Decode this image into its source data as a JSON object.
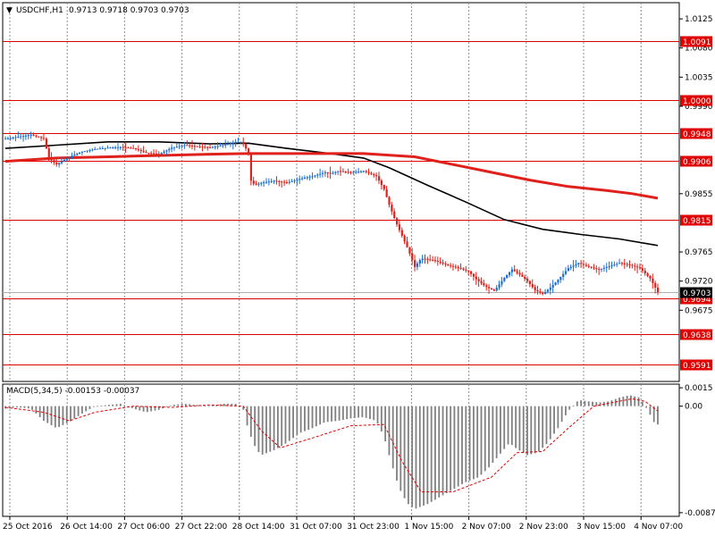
{
  "header": {
    "symbol": "USDCHF,H1",
    "ohlc": "0.9713 0.9718 0.9703 0.9703",
    "menu_glyph": "▼"
  },
  "macd_header": {
    "label": "MACD(5,34,5) -0.00153 -0.00037"
  },
  "colors": {
    "grid": "#8c8c8c",
    "bull": "#1e6fd0",
    "bear": "#e0201a",
    "ma_fast": "#000000",
    "ma_slow": "#e0201a",
    "level": "#e00000",
    "hist": "#808080",
    "signal": "#e00000"
  },
  "chart_data": [
    {
      "type": "candlestick",
      "title": "USDCHF,H1",
      "ylim": [
        0.9565,
        1.015
      ],
      "x_tick_labels": [
        "25 Oct 2016",
        "26 Oct 14:00",
        "27 Oct 06:00",
        "27 Oct 22:00",
        "28 Oct 14:00",
        "31 Oct 07:00",
        "31 Oct 23:00",
        "1 Nov 15:00",
        "2 Nov 07:00",
        "2 Nov 23:00",
        "3 Nov 15:00",
        "4 Nov 07:00"
      ],
      "y_ticks": [
        {
          "value": 1.0125,
          "label": "1.0125"
        },
        {
          "value": 1.008,
          "label": "1.0080"
        },
        {
          "value": 1.0035,
          "label": "1.0035"
        },
        {
          "value": 0.999,
          "label": "0.9990"
        },
        {
          "value": 0.9855,
          "label": "0.9855"
        },
        {
          "value": 0.9765,
          "label": "0.9765"
        },
        {
          "value": 0.972,
          "label": "0.9720"
        },
        {
          "value": 0.9675,
          "label": "0.9675"
        }
      ],
      "levels": [
        {
          "value": 1.0091,
          "label": "1.0091"
        },
        {
          "value": 1.0,
          "label": "1.0000"
        },
        {
          "value": 0.9948,
          "label": "0.9948"
        },
        {
          "value": 0.9906,
          "label": "0.9906"
        },
        {
          "value": 0.9815,
          "label": "0.9815"
        },
        {
          "value": 0.9694,
          "label": "0.9694"
        },
        {
          "value": 0.9638,
          "label": "0.9638"
        },
        {
          "value": 0.9591,
          "label": "0.9591"
        }
      ],
      "current_price": {
        "value": 0.9703,
        "label": "0.9703"
      },
      "close_path": [
        [
          0,
          0.994
        ],
        [
          10,
          0.9943
        ],
        [
          20,
          0.9946
        ],
        [
          30,
          0.994
        ],
        [
          34,
          0.991
        ],
        [
          40,
          0.99
        ],
        [
          50,
          0.9912
        ],
        [
          60,
          0.992
        ],
        [
          70,
          0.9924
        ],
        [
          80,
          0.9926
        ],
        [
          90,
          0.9927
        ],
        [
          100,
          0.9925
        ],
        [
          110,
          0.9918
        ],
        [
          120,
          0.9916
        ],
        [
          130,
          0.9926
        ],
        [
          140,
          0.993
        ],
        [
          150,
          0.9928
        ],
        [
          160,
          0.9926
        ],
        [
          170,
          0.993
        ],
        [
          180,
          0.9935
        ],
        [
          185,
          0.9935
        ],
        [
          190,
          0.9918
        ],
        [
          192,
          0.9875
        ],
        [
          195,
          0.9868
        ],
        [
          200,
          0.9872
        ],
        [
          210,
          0.9875
        ],
        [
          220,
          0.9872
        ],
        [
          230,
          0.9878
        ],
        [
          240,
          0.9882
        ],
        [
          250,
          0.9888
        ],
        [
          255,
          0.9886
        ],
        [
          260,
          0.989
        ],
        [
          270,
          0.9888
        ],
        [
          280,
          0.989
        ],
        [
          290,
          0.9882
        ],
        [
          296,
          0.9862
        ],
        [
          300,
          0.9838
        ],
        [
          305,
          0.9812
        ],
        [
          310,
          0.979
        ],
        [
          315,
          0.9768
        ],
        [
          320,
          0.9742
        ],
        [
          325,
          0.9755
        ],
        [
          335,
          0.9752
        ],
        [
          345,
          0.9745
        ],
        [
          355,
          0.974
        ],
        [
          362,
          0.9735
        ],
        [
          368,
          0.9723
        ],
        [
          375,
          0.9712
        ],
        [
          382,
          0.9705
        ],
        [
          390,
          0.9725
        ],
        [
          396,
          0.9738
        ],
        [
          402,
          0.973
        ],
        [
          408,
          0.972
        ],
        [
          414,
          0.9706
        ],
        [
          420,
          0.97
        ],
        [
          426,
          0.971
        ],
        [
          432,
          0.9722
        ],
        [
          440,
          0.974
        ],
        [
          448,
          0.9748
        ],
        [
          456,
          0.9742
        ],
        [
          464,
          0.9738
        ],
        [
          472,
          0.9743
        ],
        [
          480,
          0.9748
        ],
        [
          488,
          0.9745
        ],
        [
          496,
          0.974
        ],
        [
          504,
          0.9724
        ],
        [
          510,
          0.9703
        ]
      ],
      "series": [
        {
          "name": "",
          "kind": "moving-average",
          "color": "#000000",
          "points": [
            [
              0,
              0.9925
            ],
            [
              40,
              0.993
            ],
            [
              80,
              0.9935
            ],
            [
              120,
              0.9935
            ],
            [
              160,
              0.9932
            ],
            [
              190,
              0.9933
            ],
            [
              220,
              0.9925
            ],
            [
              250,
              0.9918
            ],
            [
              280,
              0.991
            ],
            [
              300,
              0.9895
            ],
            [
              330,
              0.9868
            ],
            [
              360,
              0.9842
            ],
            [
              390,
              0.9815
            ],
            [
              420,
              0.98
            ],
            [
              450,
              0.9792
            ],
            [
              480,
              0.9785
            ],
            [
              510,
              0.9775
            ]
          ]
        },
        {
          "name": "",
          "kind": "moving-average",
          "color": "#e0201a",
          "points": [
            [
              0,
              0.9905
            ],
            [
              40,
              0.991
            ],
            [
              100,
              0.9913
            ],
            [
              160,
              0.9916
            ],
            [
              190,
              0.9917
            ],
            [
              230,
              0.9917
            ],
            [
              280,
              0.9917
            ],
            [
              320,
              0.9912
            ],
            [
              350,
              0.99
            ],
            [
              380,
              0.9888
            ],
            [
              410,
              0.9876
            ],
            [
              440,
              0.9866
            ],
            [
              470,
              0.986
            ],
            [
              490,
              0.9855
            ],
            [
              510,
              0.9848
            ]
          ]
        }
      ]
    },
    {
      "type": "bar",
      "title": "MACD(5,34,5)",
      "values_text": "-0.00153 -0.00037",
      "ylim": [
        -0.009,
        0.0018
      ],
      "y_ticks": [
        {
          "value": 0.0015,
          "label": "0.0015"
        },
        {
          "value": 0.0,
          "label": "0.00"
        },
        {
          "value": -0.0087,
          "label": "-0.0087"
        }
      ],
      "histogram_path": [
        [
          0,
          -0.0002
        ],
        [
          10,
          -0.0001
        ],
        [
          20,
          -0.0002
        ],
        [
          30,
          -0.0012
        ],
        [
          40,
          -0.0018
        ],
        [
          50,
          -0.0013
        ],
        [
          60,
          -0.0006
        ],
        [
          70,
          0.0
        ],
        [
          80,
          0.0001
        ],
        [
          90,
          0.0002
        ],
        [
          100,
          -0.0002
        ],
        [
          110,
          -0.0005
        ],
        [
          120,
          -0.0003
        ],
        [
          130,
          0.0001
        ],
        [
          140,
          0.0002
        ],
        [
          150,
          0.0001
        ],
        [
          160,
          0.0
        ],
        [
          170,
          0.0002
        ],
        [
          180,
          0.0002
        ],
        [
          186,
          -0.0003
        ],
        [
          190,
          -0.002
        ],
        [
          196,
          -0.0035
        ],
        [
          200,
          -0.004
        ],
        [
          210,
          -0.0036
        ],
        [
          220,
          -0.003
        ],
        [
          230,
          -0.0022
        ],
        [
          240,
          -0.0018
        ],
        [
          250,
          -0.0013
        ],
        [
          260,
          -0.0012
        ],
        [
          270,
          -0.001
        ],
        [
          280,
          -0.0009
        ],
        [
          290,
          -0.0012
        ],
        [
          296,
          -0.0025
        ],
        [
          300,
          -0.004
        ],
        [
          305,
          -0.0058
        ],
        [
          310,
          -0.0072
        ],
        [
          315,
          -0.008
        ],
        [
          320,
          -0.0084
        ],
        [
          330,
          -0.008
        ],
        [
          340,
          -0.0074
        ],
        [
          350,
          -0.0068
        ],
        [
          360,
          -0.0062
        ],
        [
          370,
          -0.0058
        ],
        [
          378,
          -0.005
        ],
        [
          386,
          -0.004
        ],
        [
          394,
          -0.003
        ],
        [
          400,
          -0.0035
        ],
        [
          408,
          -0.004
        ],
        [
          416,
          -0.0038
        ],
        [
          424,
          -0.003
        ],
        [
          432,
          -0.0018
        ],
        [
          440,
          -0.0004
        ],
        [
          448,
          0.0005
        ],
        [
          456,
          0.0004
        ],
        [
          464,
          0.0003
        ],
        [
          472,
          0.0004
        ],
        [
          480,
          0.0007
        ],
        [
          488,
          0.0009
        ],
        [
          496,
          0.0007
        ],
        [
          502,
          -0.0003
        ],
        [
          508,
          -0.0015
        ],
        [
          510,
          -0.0015
        ]
      ],
      "signal_path": [
        [
          0,
          -0.0001
        ],
        [
          30,
          -0.0005
        ],
        [
          50,
          -0.0012
        ],
        [
          70,
          -0.0005
        ],
        [
          100,
          0.0
        ],
        [
          130,
          -0.0001
        ],
        [
          160,
          0.0001
        ],
        [
          186,
          0.0
        ],
        [
          200,
          -0.002
        ],
        [
          215,
          -0.0034
        ],
        [
          240,
          -0.0026
        ],
        [
          270,
          -0.0016
        ],
        [
          296,
          -0.0015
        ],
        [
          310,
          -0.0045
        ],
        [
          325,
          -0.007
        ],
        [
          350,
          -0.007
        ],
        [
          380,
          -0.0058
        ],
        [
          400,
          -0.0038
        ],
        [
          420,
          -0.0037
        ],
        [
          440,
          -0.0018
        ],
        [
          460,
          0.0
        ],
        [
          490,
          0.0006
        ],
        [
          500,
          0.0004
        ],
        [
          510,
          -0.0004
        ]
      ]
    }
  ]
}
